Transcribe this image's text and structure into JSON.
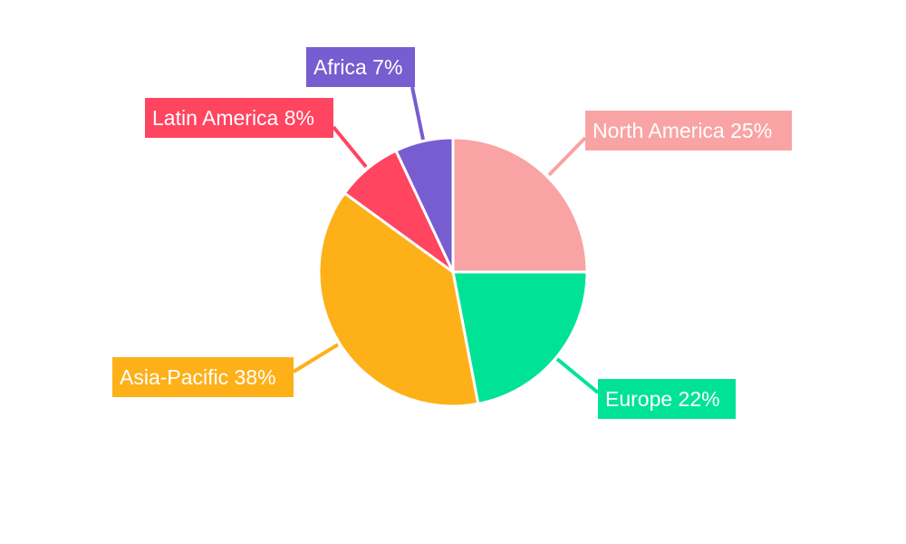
{
  "chart_data": {
    "type": "pie",
    "categories": [
      "North America",
      "Europe",
      "Asia-Pacific",
      "Latin America",
      "Africa"
    ],
    "values": [
      25,
      22,
      38,
      8,
      7
    ],
    "labels": [
      "North America 25%",
      "Europe 22%",
      "Asia-Pacific 38%",
      "Latin America 8%",
      "Africa 7%"
    ],
    "colors": [
      "#F9A3A4",
      "#00E396",
      "#FEB019",
      "#FF4560",
      "#775DD0"
    ],
    "start_angle": "top, clockwise",
    "legend": "none"
  }
}
